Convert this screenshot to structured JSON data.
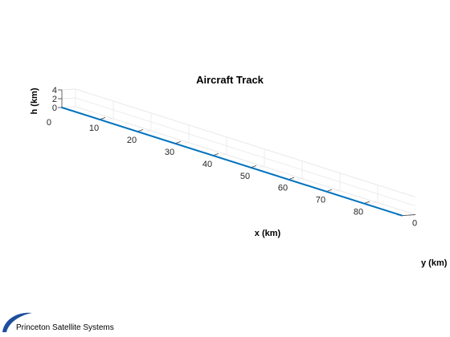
{
  "chart_data": {
    "type": "line",
    "title": "Aircraft Track",
    "xlabel": "x (km)",
    "ylabel": "y (km)",
    "zlabel": "h (km)",
    "xlim": [
      0,
      90
    ],
    "ylim": [
      0,
      1
    ],
    "zlim": [
      0,
      4
    ],
    "x_ticks": [
      10,
      20,
      30,
      40,
      50,
      60,
      70,
      80
    ],
    "y_ticks": [
      0
    ],
    "z_ticks": [
      0,
      2,
      4
    ],
    "origin_tick_label": "0",
    "grid": true,
    "series": [
      {
        "color": "#0072bd",
        "x": [
          0,
          90
        ],
        "y": [
          0,
          0
        ],
        "z": [
          0,
          0
        ]
      }
    ]
  },
  "footer": {
    "company": "Princeton Satellite Systems",
    "logo_icon": "princeton-satellite-swoosh-icon"
  }
}
